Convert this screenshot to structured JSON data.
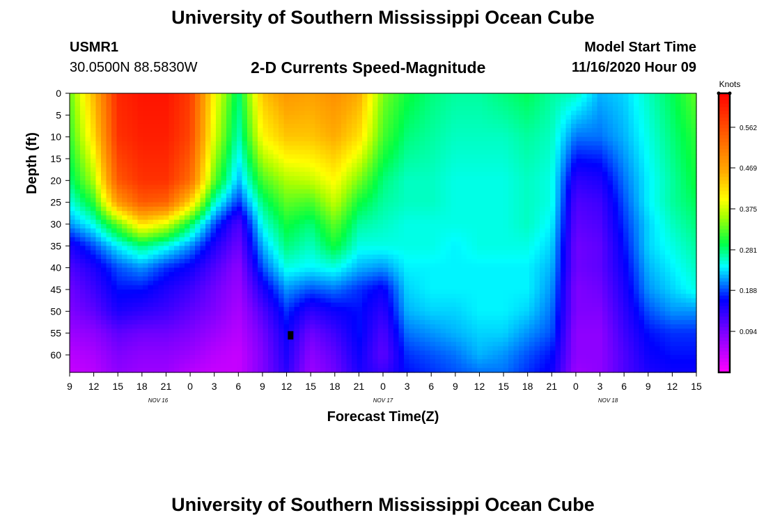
{
  "header": {
    "title_top": "University of Southern Mississippi Ocean Cube",
    "station": "USMR1",
    "coords": "30.0500N 88.5830W",
    "chart_title": "2-D Currents Speed-Magnitude",
    "model_label": "Model Start Time",
    "model_time": "11/16/2020 Hour 09",
    "title_bottom": "University of Southern Mississippi Ocean Cube"
  },
  "chart_data": {
    "type": "heatmap",
    "title": "2-D Currents Speed-Magnitude",
    "xlabel": "Forecast Time(Z)",
    "ylabel": "Depth (ft)",
    "x_hours": [
      0,
      3,
      6,
      9,
      12,
      15,
      18,
      21,
      24,
      27,
      30,
      33,
      36,
      39,
      42,
      45,
      48,
      51,
      54,
      57,
      60,
      63,
      66,
      69,
      72,
      75,
      78
    ],
    "x_tick_labels": [
      "9",
      "12",
      "15",
      "18",
      "21",
      "0",
      "3",
      "6",
      "9",
      "12",
      "15",
      "18",
      "21",
      "0",
      "3",
      "6",
      "9",
      "12",
      "15",
      "18",
      "21",
      "0",
      "3",
      "6",
      "9",
      "12",
      "15"
    ],
    "date_labels": [
      {
        "hour": 11,
        "label": "NOV 16"
      },
      {
        "hour": 39,
        "label": "NOV 17"
      },
      {
        "hour": 67,
        "label": "NOV 18"
      }
    ],
    "y_ticks": [
      0,
      5,
      10,
      15,
      20,
      25,
      30,
      35,
      40,
      45,
      50,
      55,
      60
    ],
    "ylim": [
      0,
      64
    ],
    "xlim": [
      0,
      78
    ],
    "colorbar": {
      "label": "Knots",
      "ticks": [
        0.094,
        0.188,
        0.281,
        0.375,
        0.469,
        0.562
      ],
      "min": 0.0,
      "max": 0.64
    },
    "marker": {
      "hour": 27.5,
      "depth": 55.5
    },
    "grid_hours": [
      0,
      3,
      6,
      9,
      12,
      15,
      18,
      21,
      24,
      27,
      30,
      33,
      36,
      39,
      42,
      45,
      48,
      51,
      54,
      57,
      60,
      63,
      66,
      69,
      72,
      75,
      78
    ],
    "grid_depths": [
      0,
      10,
      20,
      25,
      30,
      35,
      40,
      45,
      50,
      55,
      60,
      64
    ],
    "speed_knots": [
      [
        0.33,
        0.45,
        0.6,
        0.62,
        0.62,
        0.58,
        0.4,
        0.28,
        0.44,
        0.48,
        0.47,
        0.49,
        0.46,
        0.34,
        0.3,
        0.28,
        0.27,
        0.27,
        0.28,
        0.29,
        0.27,
        0.26,
        0.22,
        0.23,
        0.26,
        0.29,
        0.33
      ],
      [
        0.31,
        0.42,
        0.59,
        0.61,
        0.61,
        0.57,
        0.38,
        0.26,
        0.4,
        0.44,
        0.44,
        0.46,
        0.42,
        0.32,
        0.28,
        0.27,
        0.26,
        0.26,
        0.26,
        0.27,
        0.26,
        0.2,
        0.2,
        0.22,
        0.25,
        0.28,
        0.31
      ],
      [
        0.28,
        0.36,
        0.55,
        0.59,
        0.59,
        0.53,
        0.33,
        0.22,
        0.32,
        0.36,
        0.37,
        0.4,
        0.34,
        0.28,
        0.26,
        0.26,
        0.25,
        0.25,
        0.25,
        0.26,
        0.25,
        0.14,
        0.15,
        0.2,
        0.24,
        0.27,
        0.3
      ],
      [
        0.25,
        0.31,
        0.48,
        0.55,
        0.54,
        0.43,
        0.26,
        0.18,
        0.28,
        0.33,
        0.32,
        0.37,
        0.3,
        0.27,
        0.26,
        0.26,
        0.25,
        0.25,
        0.25,
        0.26,
        0.25,
        0.12,
        0.13,
        0.19,
        0.24,
        0.27,
        0.29
      ],
      [
        0.21,
        0.25,
        0.33,
        0.42,
        0.38,
        0.29,
        0.19,
        0.12,
        0.25,
        0.3,
        0.28,
        0.33,
        0.27,
        0.26,
        0.25,
        0.25,
        0.25,
        0.25,
        0.25,
        0.26,
        0.24,
        0.11,
        0.12,
        0.18,
        0.23,
        0.26,
        0.28
      ],
      [
        0.15,
        0.19,
        0.24,
        0.28,
        0.25,
        0.21,
        0.15,
        0.1,
        0.22,
        0.28,
        0.26,
        0.3,
        0.25,
        0.25,
        0.25,
        0.25,
        0.24,
        0.25,
        0.25,
        0.25,
        0.23,
        0.1,
        0.11,
        0.17,
        0.23,
        0.25,
        0.27
      ],
      [
        0.12,
        0.15,
        0.19,
        0.21,
        0.18,
        0.16,
        0.12,
        0.08,
        0.19,
        0.25,
        0.24,
        0.25,
        0.22,
        0.21,
        0.24,
        0.24,
        0.24,
        0.24,
        0.24,
        0.24,
        0.22,
        0.1,
        0.11,
        0.16,
        0.22,
        0.24,
        0.26
      ],
      [
        0.1,
        0.13,
        0.17,
        0.17,
        0.15,
        0.13,
        0.1,
        0.07,
        0.15,
        0.21,
        0.19,
        0.2,
        0.18,
        0.16,
        0.23,
        0.24,
        0.24,
        0.24,
        0.24,
        0.24,
        0.21,
        0.09,
        0.1,
        0.15,
        0.21,
        0.23,
        0.25
      ],
      [
        0.09,
        0.11,
        0.15,
        0.14,
        0.13,
        0.11,
        0.09,
        0.06,
        0.12,
        0.18,
        0.14,
        0.16,
        0.17,
        0.14,
        0.22,
        0.23,
        0.23,
        0.24,
        0.24,
        0.23,
        0.2,
        0.09,
        0.09,
        0.14,
        0.19,
        0.21,
        0.21
      ],
      [
        0.07,
        0.08,
        0.11,
        0.1,
        0.1,
        0.09,
        0.07,
        0.05,
        0.1,
        0.16,
        0.1,
        0.13,
        0.17,
        0.12,
        0.2,
        0.21,
        0.22,
        0.23,
        0.23,
        0.21,
        0.19,
        0.08,
        0.08,
        0.13,
        0.17,
        0.18,
        0.18
      ],
      [
        0.05,
        0.06,
        0.09,
        0.08,
        0.08,
        0.07,
        0.05,
        0.04,
        0.09,
        0.15,
        0.08,
        0.11,
        0.16,
        0.11,
        0.18,
        0.19,
        0.2,
        0.22,
        0.21,
        0.19,
        0.17,
        0.08,
        0.08,
        0.12,
        0.16,
        0.17,
        0.17
      ],
      [
        0.04,
        0.05,
        0.08,
        0.07,
        0.07,
        0.05,
        0.04,
        0.04,
        0.09,
        0.14,
        0.07,
        0.1,
        0.15,
        0.13,
        0.17,
        0.18,
        0.19,
        0.2,
        0.2,
        0.18,
        0.16,
        0.07,
        0.08,
        0.12,
        0.15,
        0.16,
        0.16
      ]
    ]
  }
}
